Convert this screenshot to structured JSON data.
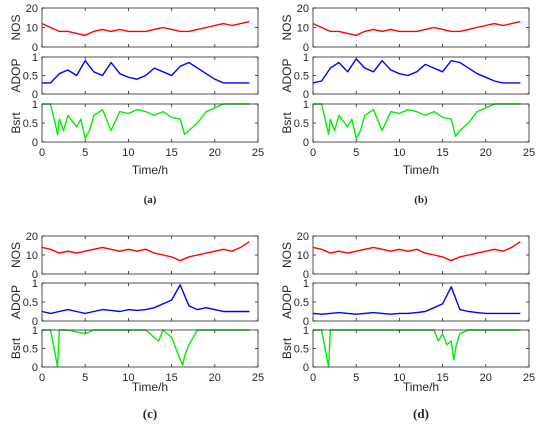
{
  "chart_data": [
    {
      "type": "line",
      "label": "(a)",
      "xlabel": "Time/h",
      "xlim": [
        0,
        25
      ],
      "xticks": [
        0,
        5,
        10,
        15,
        20,
        25
      ],
      "subplots": [
        {
          "ylabel": "NOS",
          "ylim": [
            0,
            20
          ],
          "yticks": [
            0,
            10,
            20
          ],
          "color": "#ff0000",
          "x": [
            0,
            1,
            2,
            3,
            4,
            5,
            6,
            7,
            8,
            9,
            10,
            11,
            12,
            13,
            14,
            15,
            16,
            17,
            18,
            19,
            20,
            21,
            22,
            23,
            24
          ],
          "y": [
            12,
            10,
            8,
            8,
            7,
            6,
            8,
            9,
            8,
            9,
            8,
            8,
            8,
            9,
            10,
            9,
            8,
            8,
            9,
            10,
            11,
            12,
            11,
            12,
            13
          ]
        },
        {
          "ylabel": "ADOP",
          "ylim": [
            0,
            1
          ],
          "yticks": [
            0,
            0.5,
            1
          ],
          "color": "#0000ff",
          "x": [
            0,
            1,
            2,
            3,
            4,
            5,
            6,
            7,
            8,
            9,
            10,
            11,
            12,
            13,
            14,
            15,
            16,
            17,
            18,
            19,
            20,
            21,
            22,
            23,
            24
          ],
          "y": [
            0.3,
            0.3,
            0.55,
            0.65,
            0.5,
            0.9,
            0.6,
            0.5,
            0.85,
            0.55,
            0.45,
            0.4,
            0.5,
            0.7,
            0.6,
            0.5,
            0.75,
            0.85,
            0.7,
            0.55,
            0.4,
            0.3,
            0.3,
            0.3,
            0.3
          ]
        },
        {
          "ylabel": "Bsrt",
          "ylim": [
            0,
            1
          ],
          "yticks": [
            0,
            0.5,
            1
          ],
          "color": "#00ee00",
          "x": [
            0,
            1,
            1.8,
            2,
            2.5,
            3,
            4,
            4.5,
            5,
            5.5,
            6,
            7,
            8,
            9,
            10,
            11,
            12,
            13,
            14,
            15,
            16,
            16.5,
            17,
            18,
            19,
            20,
            21,
            22,
            23,
            24
          ],
          "y": [
            1,
            1,
            0.2,
            0.6,
            0.3,
            0.7,
            0.4,
            0.6,
            0.1,
            0.3,
            0.7,
            0.85,
            0.3,
            0.8,
            0.75,
            0.85,
            0.8,
            0.7,
            0.8,
            0.65,
            0.6,
            0.2,
            0.3,
            0.5,
            0.8,
            0.9,
            1,
            1,
            1,
            1
          ]
        }
      ]
    },
    {
      "type": "line",
      "label": "(b)",
      "xlabel": "Time/h",
      "xlim": [
        0,
        25
      ],
      "xticks": [
        0,
        5,
        10,
        15,
        20,
        25
      ],
      "subplots": [
        {
          "ylabel": "NOS",
          "ylim": [
            0,
            20
          ],
          "yticks": [
            0,
            10,
            20
          ],
          "color": "#ff0000",
          "x": [
            0,
            1,
            2,
            3,
            4,
            5,
            6,
            7,
            8,
            9,
            10,
            11,
            12,
            13,
            14,
            15,
            16,
            17,
            18,
            19,
            20,
            21,
            22,
            23,
            24
          ],
          "y": [
            12,
            10,
            8,
            8,
            7,
            6,
            8,
            9,
            8,
            9,
            8,
            8,
            8,
            9,
            10,
            9,
            8,
            8,
            9,
            10,
            11,
            12,
            11,
            12,
            13
          ]
        },
        {
          "ylabel": "ADOP",
          "ylim": [
            0,
            1
          ],
          "yticks": [
            0,
            0.5,
            1
          ],
          "color": "#0000ff",
          "x": [
            0,
            1,
            2,
            3,
            4,
            5,
            6,
            7,
            8,
            9,
            10,
            11,
            12,
            13,
            14,
            15,
            16,
            17,
            18,
            19,
            20,
            21,
            22,
            23,
            24
          ],
          "y": [
            0.3,
            0.35,
            0.7,
            0.85,
            0.6,
            0.95,
            0.7,
            0.6,
            0.9,
            0.65,
            0.55,
            0.5,
            0.6,
            0.8,
            0.7,
            0.6,
            0.9,
            0.85,
            0.7,
            0.55,
            0.45,
            0.35,
            0.3,
            0.3,
            0.3
          ]
        },
        {
          "ylabel": "Bsrt",
          "ylim": [
            0,
            1
          ],
          "yticks": [
            0,
            0.5,
            1
          ],
          "color": "#00ee00",
          "x": [
            0,
            1,
            1.8,
            2,
            2.5,
            3,
            4,
            4.5,
            5,
            5.5,
            6,
            7,
            8,
            9,
            10,
            11,
            12,
            13,
            14,
            15,
            16,
            16.5,
            17,
            18,
            19,
            20,
            21,
            22,
            23,
            24
          ],
          "y": [
            1,
            1,
            0.2,
            0.6,
            0.3,
            0.7,
            0.4,
            0.6,
            0.1,
            0.3,
            0.7,
            0.85,
            0.3,
            0.8,
            0.75,
            0.85,
            0.8,
            0.7,
            0.8,
            0.65,
            0.6,
            0.15,
            0.3,
            0.5,
            0.8,
            0.9,
            1,
            1,
            1,
            1
          ]
        }
      ]
    },
    {
      "type": "line",
      "label": "(c)",
      "xlabel": "Time/h",
      "xlim": [
        0,
        25
      ],
      "xticks": [
        0,
        5,
        10,
        15,
        20,
        25
      ],
      "subplots": [
        {
          "ylabel": "NOS",
          "ylim": [
            0,
            20
          ],
          "yticks": [
            0,
            10,
            20
          ],
          "color": "#ff0000",
          "x": [
            0,
            1,
            2,
            3,
            4,
            5,
            6,
            7,
            8,
            9,
            10,
            11,
            12,
            13,
            14,
            15,
            16,
            17,
            18,
            19,
            20,
            21,
            22,
            23,
            24
          ],
          "y": [
            14,
            13,
            11,
            12,
            11,
            12,
            13,
            14,
            13,
            12,
            13,
            12,
            13,
            11,
            10,
            9,
            7,
            9,
            10,
            11,
            12,
            13,
            12,
            14,
            17
          ]
        },
        {
          "ylabel": "ADOP",
          "ylim": [
            0,
            1
          ],
          "yticks": [
            0,
            0.5,
            1
          ],
          "color": "#0000ff",
          "x": [
            0,
            1,
            2,
            3,
            4,
            5,
            6,
            7,
            8,
            9,
            10,
            11,
            12,
            13,
            14,
            15,
            16,
            17,
            18,
            19,
            20,
            21,
            22,
            23,
            24
          ],
          "y": [
            0.25,
            0.2,
            0.25,
            0.3,
            0.25,
            0.2,
            0.25,
            0.3,
            0.28,
            0.25,
            0.3,
            0.28,
            0.3,
            0.35,
            0.45,
            0.55,
            0.95,
            0.4,
            0.3,
            0.35,
            0.3,
            0.25,
            0.25,
            0.25,
            0.25
          ]
        },
        {
          "ylabel": "Bsrt",
          "ylim": [
            0,
            1
          ],
          "yticks": [
            0,
            0.5,
            1
          ],
          "color": "#00ee00",
          "x": [
            0,
            1,
            1.8,
            2,
            3,
            5,
            6,
            8,
            10,
            12,
            13.5,
            14,
            15,
            15.5,
            16,
            16.3,
            16.5,
            17,
            18,
            20,
            22,
            24
          ],
          "y": [
            1,
            1,
            0,
            1,
            1,
            0.9,
            1,
            1,
            1,
            1,
            0.7,
            1,
            0.8,
            0.5,
            0.2,
            0.05,
            0.3,
            0.6,
            1,
            1,
            1,
            1
          ]
        }
      ]
    },
    {
      "type": "line",
      "label": "(d)",
      "xlabel": "Time/h",
      "xlim": [
        0,
        25
      ],
      "xticks": [
        0,
        5,
        10,
        15,
        20,
        25
      ],
      "subplots": [
        {
          "ylabel": "NOS",
          "ylim": [
            0,
            20
          ],
          "yticks": [
            0,
            10,
            20
          ],
          "color": "#ff0000",
          "x": [
            0,
            1,
            2,
            3,
            4,
            5,
            6,
            7,
            8,
            9,
            10,
            11,
            12,
            13,
            14,
            15,
            16,
            17,
            18,
            19,
            20,
            21,
            22,
            23,
            24
          ],
          "y": [
            14,
            13,
            11,
            12,
            11,
            12,
            13,
            14,
            13,
            12,
            13,
            12,
            13,
            11,
            10,
            9,
            7,
            9,
            10,
            11,
            12,
            13,
            12,
            14,
            17
          ]
        },
        {
          "ylabel": "ADOP",
          "ylim": [
            0,
            1
          ],
          "yticks": [
            0,
            0.5,
            1
          ],
          "color": "#0000ff",
          "x": [
            0,
            1,
            2,
            3,
            4,
            5,
            6,
            7,
            8,
            9,
            10,
            11,
            12,
            13,
            14,
            15,
            16,
            17,
            18,
            19,
            20,
            21,
            22,
            23,
            24
          ],
          "y": [
            0.2,
            0.18,
            0.2,
            0.22,
            0.2,
            0.18,
            0.2,
            0.22,
            0.2,
            0.18,
            0.2,
            0.2,
            0.22,
            0.25,
            0.35,
            0.45,
            0.9,
            0.3,
            0.25,
            0.22,
            0.2,
            0.2,
            0.2,
            0.2,
            0.2
          ]
        },
        {
          "ylabel": "Bsrt",
          "ylim": [
            0,
            1
          ],
          "yticks": [
            0,
            0.5,
            1
          ],
          "color": "#00ee00",
          "x": [
            0,
            1,
            1.8,
            2,
            3,
            5,
            6,
            8,
            10,
            12,
            14,
            14.5,
            15,
            15.5,
            16,
            16.3,
            16.6,
            17,
            18,
            20,
            22,
            24
          ],
          "y": [
            1,
            1,
            0,
            1,
            1,
            1,
            1,
            1,
            1,
            1,
            1,
            0.7,
            0.9,
            0.6,
            0.7,
            0.2,
            0.6,
            0.9,
            1,
            1,
            1,
            1
          ]
        }
      ]
    }
  ]
}
